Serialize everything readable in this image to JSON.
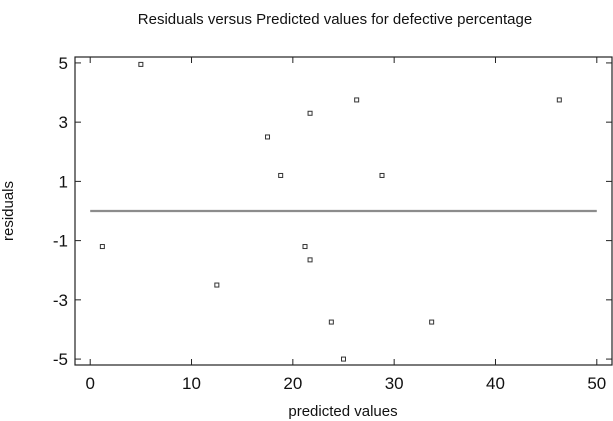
{
  "chart_data": {
    "type": "scatter",
    "title": "Residuals versus Predicted values for defective percentage",
    "xlabel": "predicted values",
    "ylabel": "residuals",
    "xlim": [
      -1.5,
      51.5
    ],
    "ylim": [
      -5.2,
      5.2
    ],
    "xticks": [
      0,
      10,
      20,
      30,
      40,
      50
    ],
    "yticks": [
      5,
      3,
      1,
      -1,
      -3,
      -5
    ],
    "grid": false,
    "reference_line": {
      "y": 0,
      "color": "#8c8c8c"
    },
    "marker_color": "#333333",
    "points": [
      {
        "x": 1.2,
        "y": -1.2
      },
      {
        "x": 5.0,
        "y": 4.95
      },
      {
        "x": 12.5,
        "y": -2.5
      },
      {
        "x": 17.5,
        "y": 2.5
      },
      {
        "x": 18.8,
        "y": 1.2
      },
      {
        "x": 21.2,
        "y": -1.2
      },
      {
        "x": 21.7,
        "y": 3.3
      },
      {
        "x": 21.7,
        "y": -1.65
      },
      {
        "x": 23.8,
        "y": -3.75
      },
      {
        "x": 25.0,
        "y": -5.0
      },
      {
        "x": 26.3,
        "y": 3.75
      },
      {
        "x": 28.8,
        "y": 1.2
      },
      {
        "x": 33.7,
        "y": -3.75
      },
      {
        "x": 46.3,
        "y": 3.75
      }
    ]
  }
}
